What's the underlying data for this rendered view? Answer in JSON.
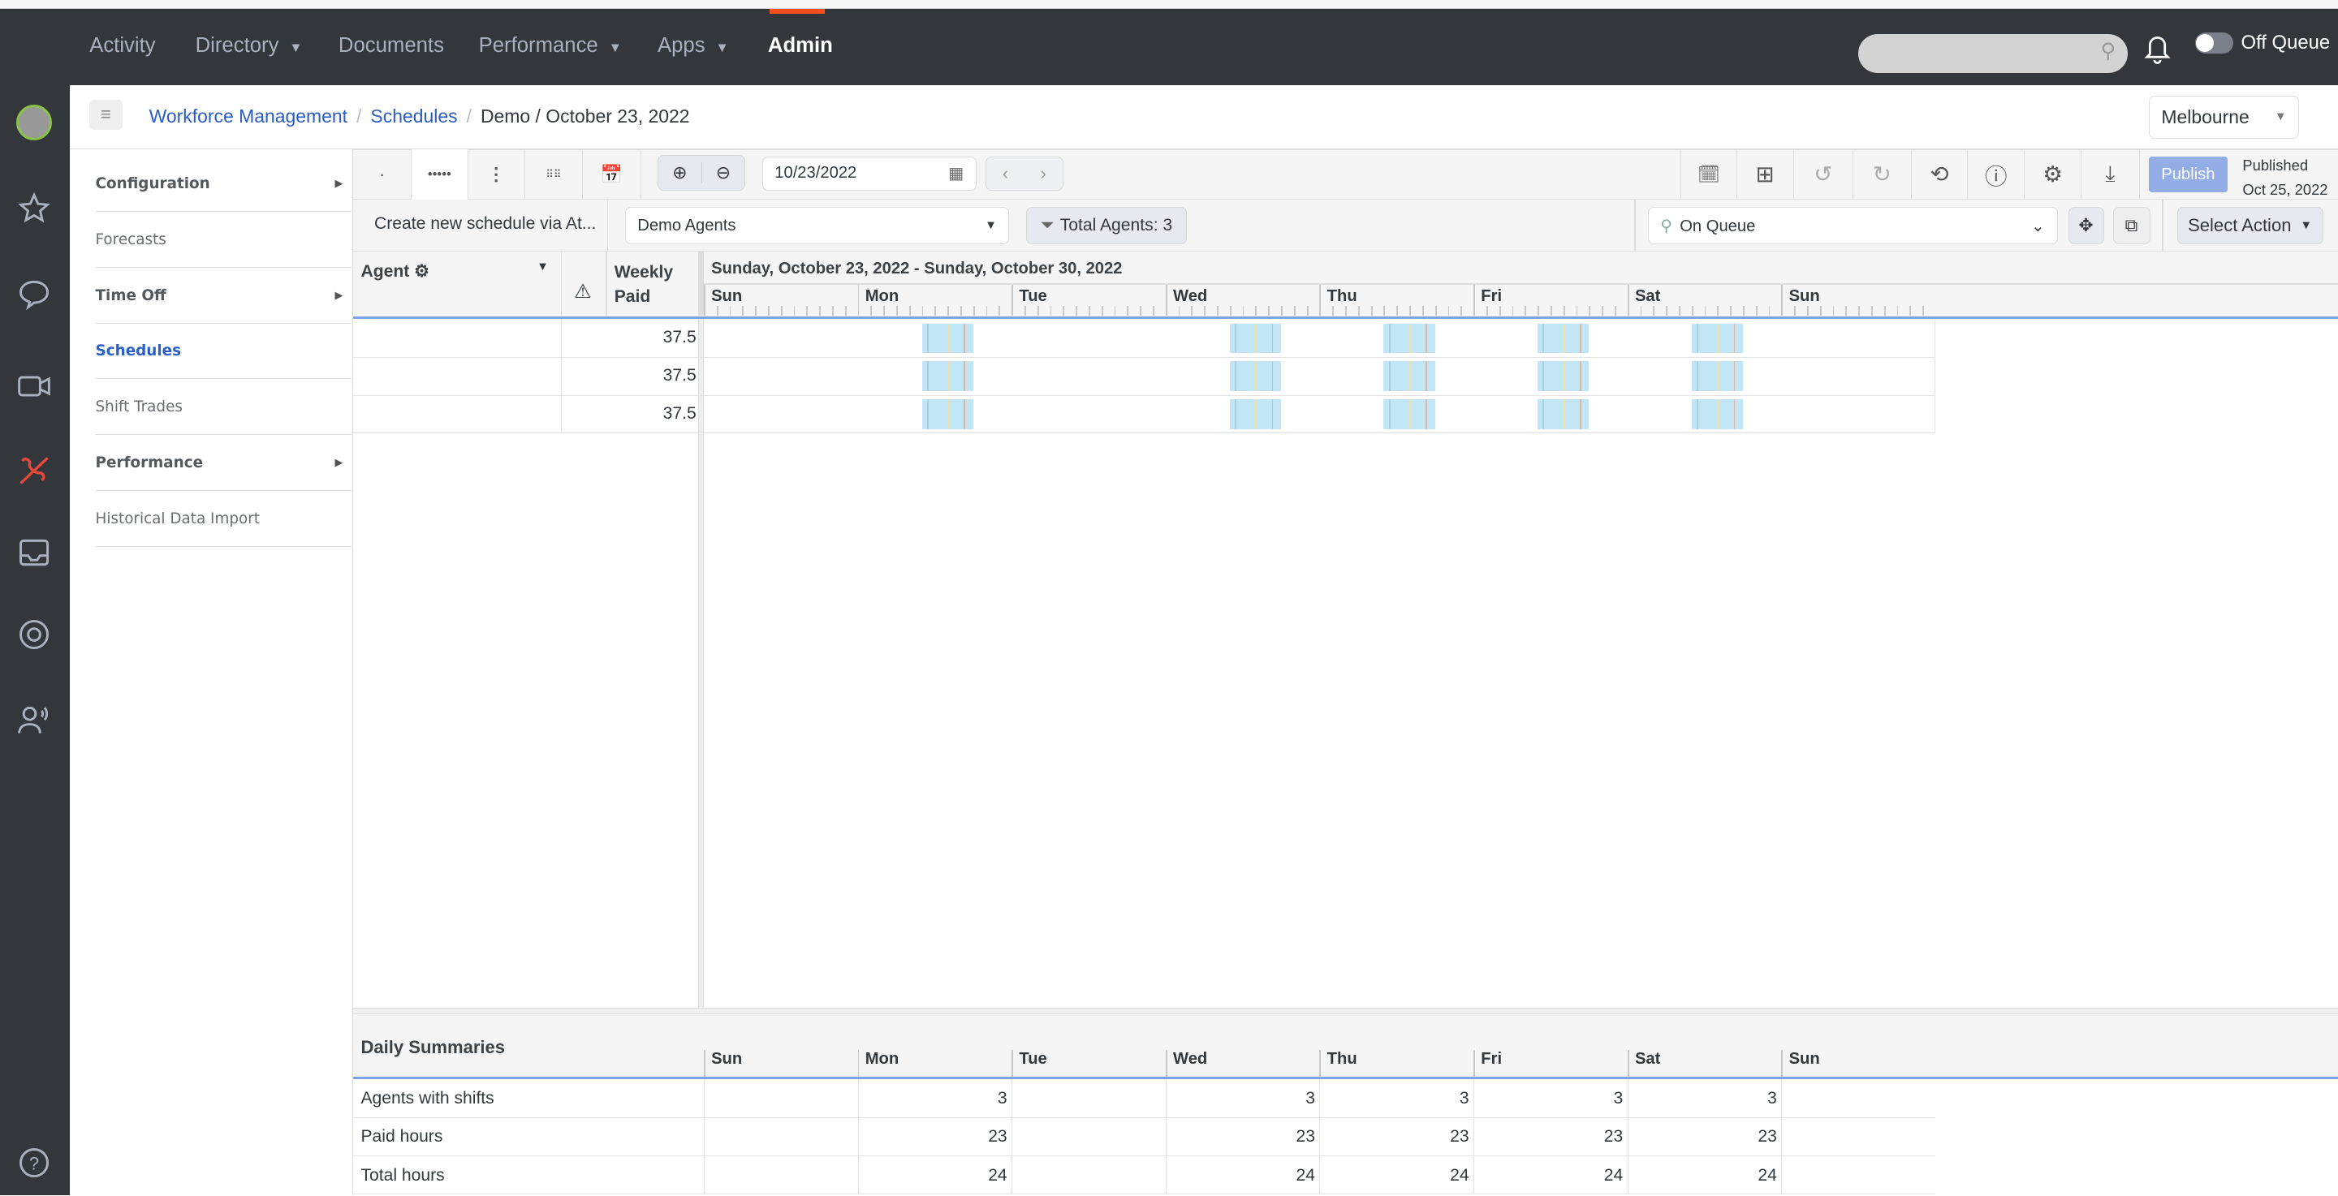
{
  "nav": {
    "items": [
      {
        "label": "Activity",
        "caret": false
      },
      {
        "label": "Directory",
        "caret": true
      },
      {
        "label": "Documents",
        "caret": false
      },
      {
        "label": "Performance",
        "caret": true
      },
      {
        "label": "Apps",
        "caret": true
      },
      {
        "label": "Admin",
        "caret": false,
        "active": true
      }
    ],
    "queue_status": "Off Queue",
    "brand_color": "#ff4f1f"
  },
  "rail": {
    "icons": [
      "user-avatar",
      "star-icon",
      "chat-icon",
      "video-icon",
      "phone-off-icon",
      "inbox-icon",
      "help-ring-icon",
      "contact-speaking-icon",
      "question-icon"
    ]
  },
  "breadcrumb": {
    "items": [
      "Workforce Management",
      "Schedules"
    ],
    "current": "Demo / October 23, 2022"
  },
  "location_select": "Melbourne",
  "menu": [
    {
      "label": "Configuration",
      "style": "bold",
      "arrow": true
    },
    {
      "label": "Forecasts",
      "style": "",
      "arrow": false
    },
    {
      "label": "Time Off",
      "style": "bold",
      "arrow": true
    },
    {
      "label": "Schedules",
      "style": "sel",
      "arrow": false
    },
    {
      "label": "Shift Trades",
      "style": "",
      "arrow": false
    },
    {
      "label": "Performance",
      "style": "bold",
      "arrow": true
    },
    {
      "label": "Historical Data Import",
      "style": "",
      "arrow": false
    }
  ],
  "toolbar": {
    "date": "10/23/2022",
    "publish": "Publish",
    "published_label": "Published",
    "published_date": "Oct 25, 2022"
  },
  "row2": {
    "create_schedule": "Create new schedule via At...",
    "group": "Demo Agents",
    "total_agents": "Total Agents: 3",
    "queue_filter": "On Queue",
    "select_action": "Select Action"
  },
  "grid": {
    "agent_header": "Agent",
    "weekly": "Weekly",
    "paid": "Paid",
    "range": "Sunday, October 23, 2022 - Sunday, October 30, 2022",
    "days": [
      "Sun",
      "Mon",
      "Tue",
      "Wed",
      "Thu",
      "Fri",
      "Sat",
      "Sun"
    ],
    "rows": [
      {
        "weekly_paid": "37.5"
      },
      {
        "weekly_paid": "37.5"
      },
      {
        "weekly_paid": "37.5"
      }
    ],
    "shift_days": [
      1,
      3,
      4,
      5,
      6
    ],
    "shift_start_hour": 10,
    "shift_end_hour": 18,
    "activity_color": "#c3e6f7"
  },
  "summary": {
    "title": "Daily Summaries",
    "rows": [
      {
        "label": "Agents with shifts",
        "values": [
          "",
          "3",
          "",
          "3",
          "3",
          "3",
          "3",
          ""
        ]
      },
      {
        "label": "Paid hours",
        "values": [
          "",
          "23",
          "",
          "23",
          "23",
          "23",
          "23",
          ""
        ]
      },
      {
        "label": "Total hours",
        "values": [
          "",
          "24",
          "",
          "24",
          "24",
          "24",
          "24",
          ""
        ]
      }
    ]
  }
}
